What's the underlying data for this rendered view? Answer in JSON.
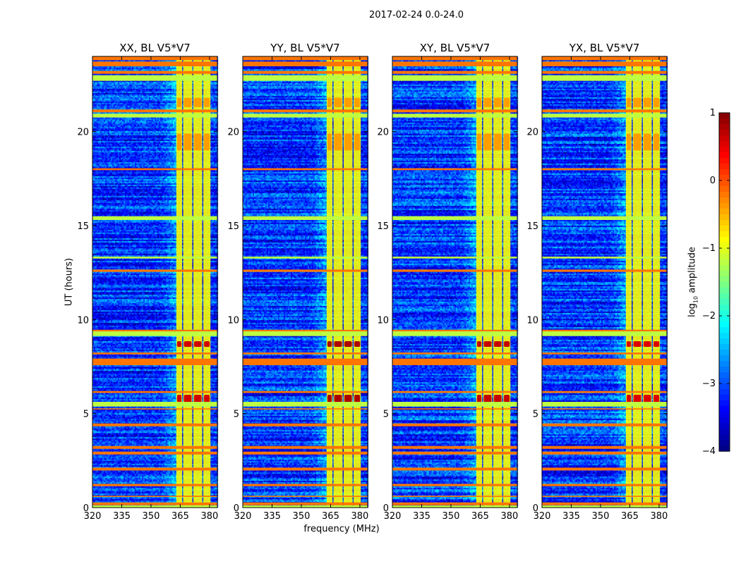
{
  "figure_title": "2017-02-24 0.0-24.0",
  "chart_data": {
    "type": "heatmap",
    "panels": [
      {
        "title": "XX, BL V5*V7",
        "hot_scale": 1.0
      },
      {
        "title": "YY, BL V5*V7",
        "hot_scale": 1.3
      },
      {
        "title": "XY, BL V5*V7",
        "hot_scale": 1.1
      },
      {
        "title": "YX, BL V5*V7",
        "hot_scale": 0.9
      }
    ],
    "xlabel": "frequency (MHz)",
    "ylabel": "UT (hours)",
    "xlim": [
      320,
      384
    ],
    "ylim": [
      0,
      24
    ],
    "xticks": [
      {
        "v": 320,
        "label": "320"
      },
      {
        "v": 335,
        "label": "335"
      },
      {
        "v": 350,
        "label": "350"
      },
      {
        "v": 365,
        "label": "365"
      },
      {
        "v": 380,
        "label": "380"
      }
    ],
    "yticks": [
      {
        "v": 0,
        "label": "0"
      },
      {
        "v": 5,
        "label": "5"
      },
      {
        "v": 10,
        "label": "10"
      },
      {
        "v": 15,
        "label": "15"
      },
      {
        "v": 20,
        "label": "20"
      }
    ],
    "colorbar": {
      "label_prefix": "log",
      "label_sub": "10",
      "label_suffix": " amplitude",
      "range": [
        -4,
        1
      ],
      "cmap": "jet",
      "ticks": [
        {
          "v": 1,
          "label": "1"
        },
        {
          "v": 0,
          "label": "0"
        },
        {
          "v": -1,
          "label": "−1"
        },
        {
          "v": -2,
          "label": "−2"
        },
        {
          "v": -3,
          "label": "−3"
        },
        {
          "v": -4,
          "label": "−4"
        }
      ]
    },
    "background_level": -3.1,
    "band": {
      "range": [
        363,
        381
      ],
      "level": -0.9,
      "gaps": [
        366.5,
        371.7,
        376.8
      ]
    },
    "rfi_rows": [
      {
        "hour": 23.9,
        "width": 0.2,
        "level": -0.2
      },
      {
        "hour": 23.6,
        "width": 0.25,
        "level": -0.2
      },
      {
        "hour": 23.15,
        "width": 0.15,
        "level": -0.2
      },
      {
        "hour": 22.85,
        "width": 0.3,
        "level": -1.2
      },
      {
        "hour": 21.1,
        "width": 0.15,
        "level": -0.2
      },
      {
        "hour": 20.85,
        "width": 0.2,
        "level": -1.2
      },
      {
        "hour": 18.0,
        "width": 0.1,
        "level": -0.2
      },
      {
        "hour": 15.4,
        "width": 0.2,
        "level": -1.2
      },
      {
        "hour": 13.3,
        "width": 0.1,
        "level": -1.2
      },
      {
        "hour": 12.6,
        "width": 0.12,
        "level": -0.2
      },
      {
        "hour": 9.4,
        "width": 0.12,
        "level": -0.2
      },
      {
        "hour": 9.25,
        "width": 0.25,
        "level": -1.2
      },
      {
        "hour": 8.2,
        "width": 0.1,
        "level": -0.2
      },
      {
        "hour": 7.75,
        "width": 0.35,
        "level": -0.2
      },
      {
        "hour": 6.15,
        "width": 0.1,
        "level": -0.2
      },
      {
        "hour": 5.5,
        "width": 0.25,
        "level": -1.2
      },
      {
        "hour": 5.25,
        "width": 0.06,
        "level": -0.2
      },
      {
        "hour": 4.4,
        "width": 0.15,
        "level": -0.2
      },
      {
        "hour": 3.2,
        "width": 0.15,
        "level": -0.2
      },
      {
        "hour": 2.9,
        "width": 0.15,
        "level": -0.2
      },
      {
        "hour": 2.05,
        "width": 0.15,
        "level": -0.2
      },
      {
        "hour": 1.2,
        "width": 0.12,
        "level": -0.2
      },
      {
        "hour": 0.6,
        "width": 0.06,
        "level": -0.2
      },
      {
        "hour": 0.2,
        "width": 0.15,
        "level": -0.2
      },
      {
        "hour": 0.05,
        "width": 0.12,
        "level": -1.2
      }
    ],
    "hot_blocks": [
      {
        "hours": [
          5.6,
          6.0
        ],
        "level": 0.6
      },
      {
        "hours": [
          8.55,
          8.85
        ],
        "level": 0.6
      },
      {
        "hours": [
          19.0,
          19.9
        ],
        "level": -0.4
      },
      {
        "hours": [
          21.3,
          21.8
        ],
        "level": -0.4
      }
    ]
  }
}
